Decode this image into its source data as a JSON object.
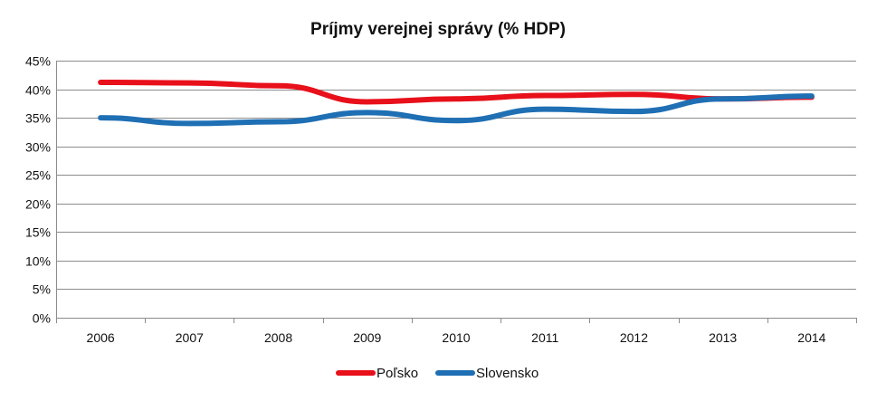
{
  "chart_data": {
    "type": "line",
    "title": "Príjmy verejnej správy (% HDP)",
    "xlabel": "",
    "ylabel": "",
    "categories": [
      "2006",
      "2007",
      "2008",
      "2009",
      "2010",
      "2011",
      "2012",
      "2013",
      "2014"
    ],
    "ylim": [
      0,
      45
    ],
    "yticks": [
      0,
      5,
      10,
      15,
      20,
      25,
      30,
      35,
      40,
      45
    ],
    "ytick_labels": [
      "0%",
      "5%",
      "10%",
      "15%",
      "20%",
      "25%",
      "30%",
      "35%",
      "40%",
      "45%"
    ],
    "grid": true,
    "legend_position": "bottom",
    "series": [
      {
        "name": "Poľsko",
        "color": "#e8101a",
        "values": [
          41.2,
          41.1,
          40.6,
          37.8,
          38.3,
          38.9,
          39.1,
          38.3,
          38.6
        ]
      },
      {
        "name": "Slovensko",
        "color": "#1f6fb4",
        "values": [
          35.0,
          34.0,
          34.3,
          35.9,
          34.5,
          36.5,
          36.1,
          38.3,
          38.8
        ]
      }
    ]
  }
}
